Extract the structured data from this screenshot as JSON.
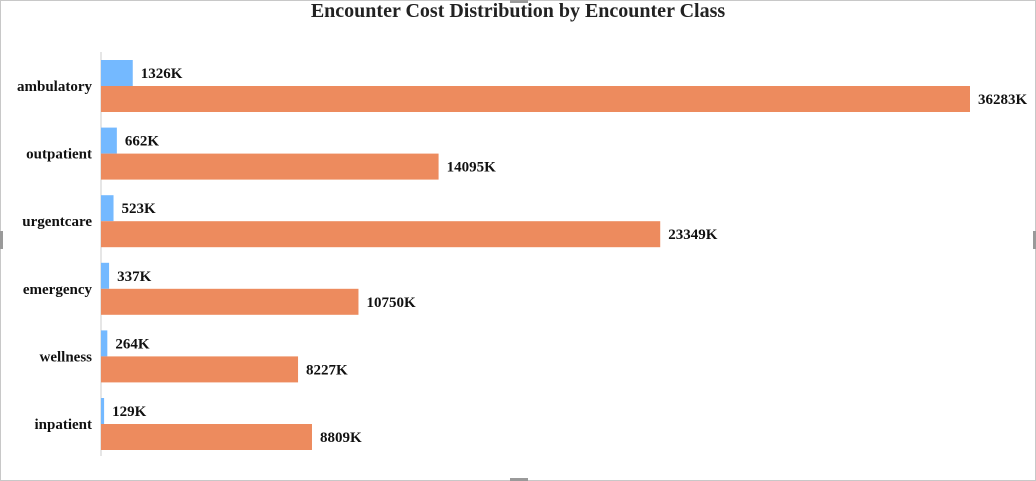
{
  "chart_data": {
    "type": "bar",
    "orientation": "horizontal",
    "title": "Encounter Cost Distribution by Encounter Class",
    "xlabel": "",
    "ylabel": "",
    "categories": [
      "ambulatory",
      "outpatient",
      "urgentcare",
      "emergency",
      "wellness",
      "inpatient"
    ],
    "series": [
      {
        "color": "#74b9ff",
        "values": [
          1326,
          662,
          523,
          337,
          264,
          129
        ],
        "labels": [
          "1326K",
          "662K",
          "523K",
          "337K",
          "264K",
          "129K"
        ]
      },
      {
        "color": "#ed8b5e",
        "values": [
          36283,
          14095,
          23349,
          10750,
          8227,
          8809
        ],
        "labels": [
          "36283K",
          "14095K",
          "23349K",
          "10750K",
          "8227K",
          "8809K"
        ]
      }
    ],
    "xlim": [
      0,
      36283
    ],
    "unit": "K",
    "grid": false,
    "legend": "none"
  }
}
